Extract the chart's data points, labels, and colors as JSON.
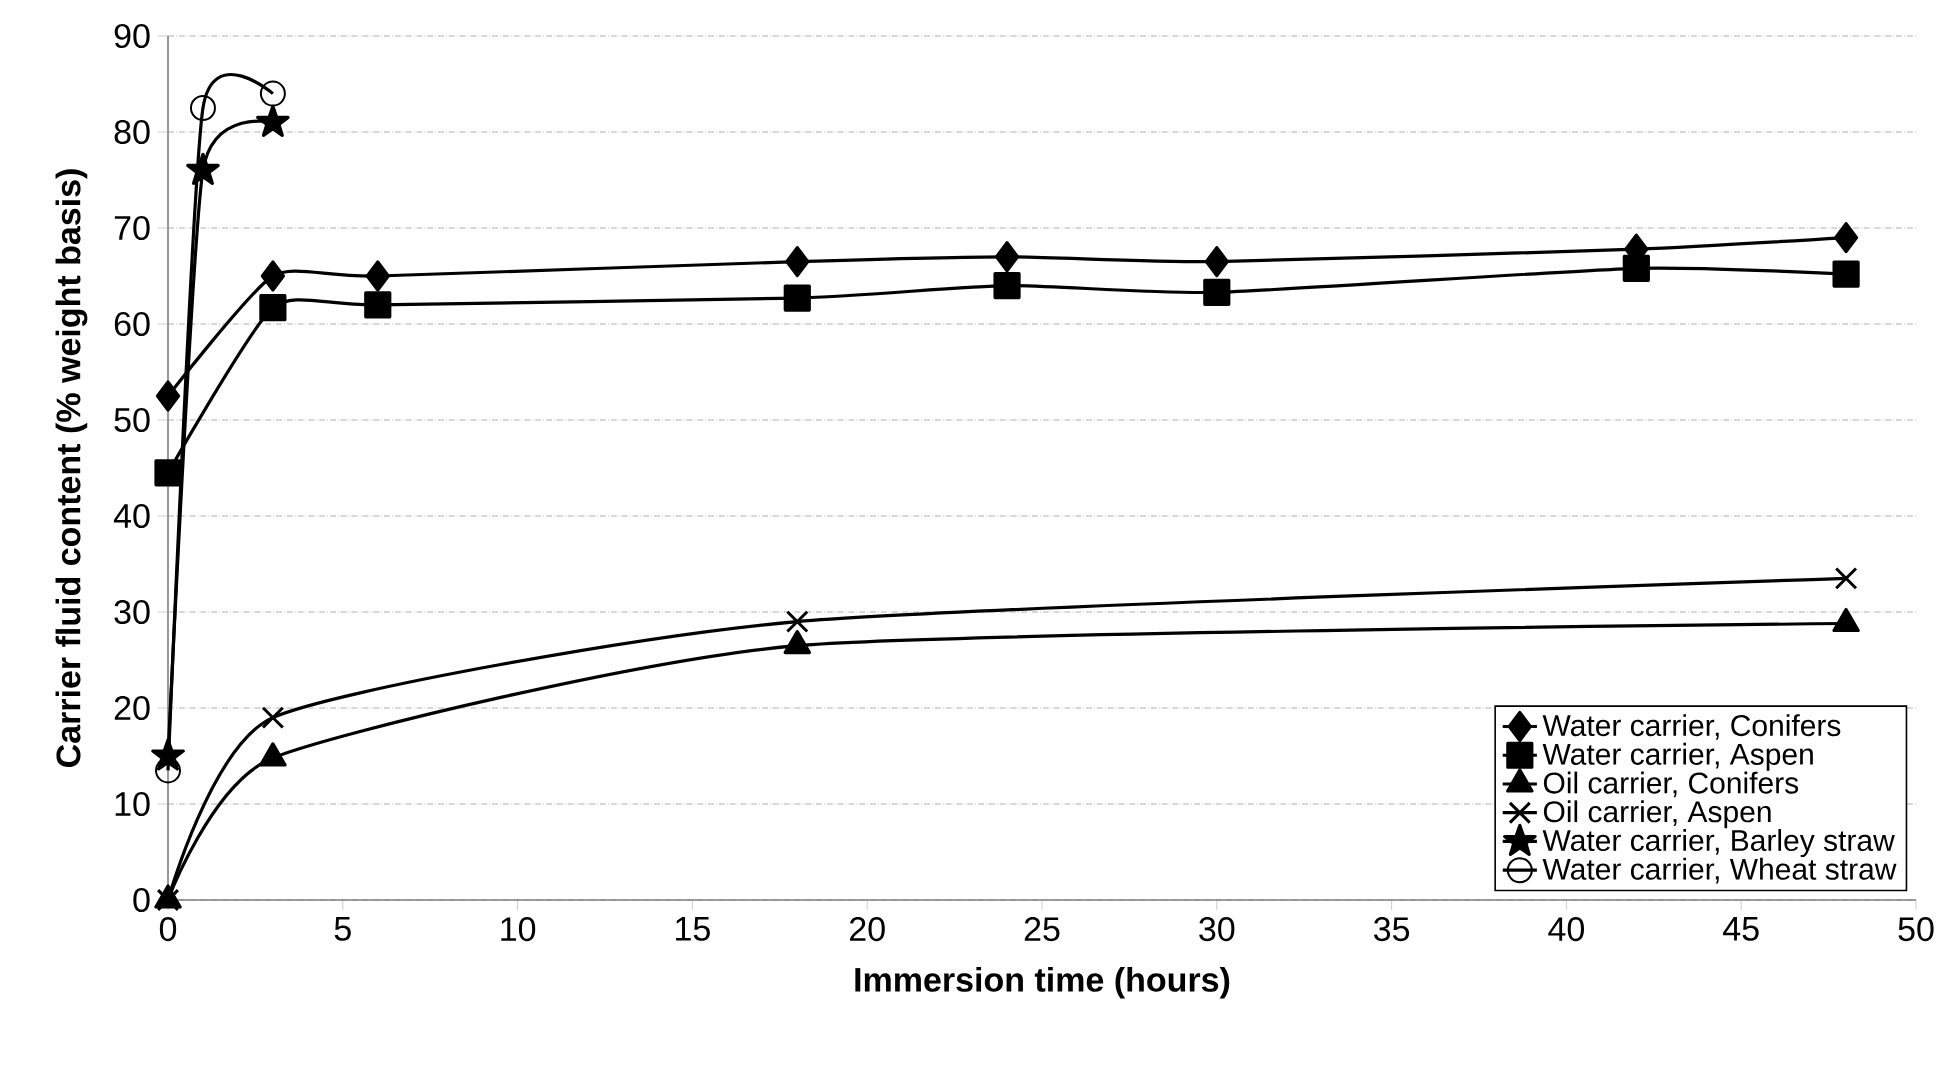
{
  "chart_data": {
    "type": "line",
    "xlabel": "Immersion time (hours)",
    "ylabel": "Carrier fluid content (% weight basis)",
    "xlim": [
      0,
      50
    ],
    "xticks": [
      0,
      5,
      10,
      15,
      20,
      25,
      30,
      35,
      40,
      45,
      50
    ],
    "ylim": [
      0,
      90
    ],
    "yticks": [
      0,
      10,
      20,
      30,
      40,
      50,
      60,
      70,
      80,
      90
    ],
    "grid": "y",
    "legend": "bottom right",
    "series": [
      {
        "name": "Water carrier, Conifers",
        "color": "#000000",
        "marker": "diamond",
        "x": [
          0,
          3,
          6,
          18,
          24,
          30,
          42,
          48
        ],
        "values": [
          52.5,
          65,
          65,
          66.5,
          67,
          66.5,
          67.8,
          69
        ]
      },
      {
        "name": "Water carrier, Aspen",
        "color": "#000000",
        "marker": "square",
        "x": [
          0,
          3,
          6,
          18,
          24,
          30,
          42,
          48
        ],
        "values": [
          44.5,
          61.7,
          62,
          62.7,
          64,
          63.3,
          65.8,
          65.2
        ]
      },
      {
        "name": "Oil carrier, Conifers",
        "color": "#000000",
        "marker": "triangle",
        "x": [
          0,
          3,
          18,
          48
        ],
        "values": [
          0,
          14.8,
          26.5,
          28.8
        ]
      },
      {
        "name": "Oil carrier, Aspen",
        "color": "#000000",
        "marker": "cross",
        "x": [
          0,
          3,
          18,
          48
        ],
        "values": [
          0,
          19,
          29,
          33.5
        ]
      },
      {
        "name": "Water carrier, Barley straw",
        "color": "#000000",
        "marker": "star",
        "x": [
          0,
          1,
          3
        ],
        "values": [
          15,
          76,
          81
        ]
      },
      {
        "name": "Water carrier, Wheat straw",
        "color": "#000000",
        "marker": "circle",
        "x": [
          0,
          1,
          3
        ],
        "values": [
          13.5,
          82.5,
          84
        ]
      }
    ]
  }
}
